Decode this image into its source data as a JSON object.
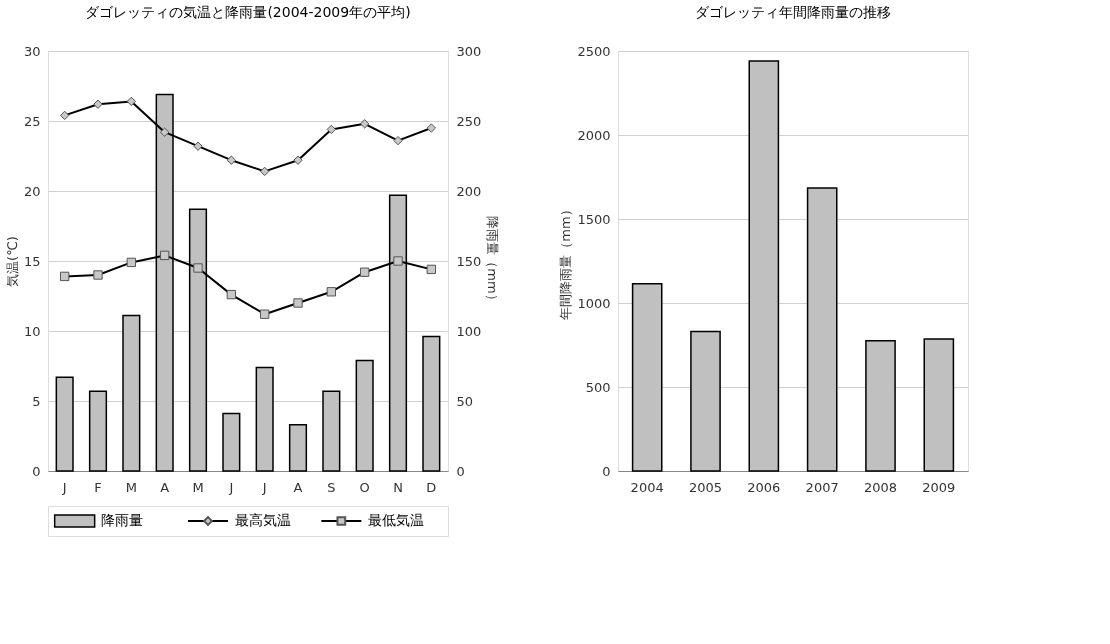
{
  "chart_data": [
    {
      "type": "bar",
      "title": "ダゴレッティの気温と降雨量(2004-2009年の平均)",
      "categories": [
        "J",
        "F",
        "M",
        "A",
        "M",
        "J",
        "J",
        "A",
        "S",
        "O",
        "N",
        "D"
      ],
      "series": [
        {
          "name": "降雨量",
          "type": "bar",
          "axis": "y2",
          "color": "#c0c0c0",
          "values": [
            67,
            57,
            111,
            269,
            187,
            41,
            74,
            33,
            57,
            79,
            197,
            96
          ]
        },
        {
          "name": "最高気温",
          "type": "line",
          "color": "#000000",
          "marker": "diamond",
          "values": [
            25.4,
            26.2,
            26.4,
            24.2,
            23.2,
            22.2,
            21.4,
            22.2,
            24.4,
            24.8,
            23.6,
            24.5
          ]
        },
        {
          "name": "最低気温",
          "type": "line",
          "color": "#000000",
          "marker": "square",
          "values": [
            13.9,
            14.0,
            14.9,
            15.4,
            14.5,
            12.6,
            11.2,
            12.0,
            12.8,
            14.2,
            15.0,
            14.4
          ]
        }
      ],
      "ylabel": "気温(℃)",
      "y2label": "降雨量（mm）",
      "ylim": [
        0,
        30
      ],
      "yticks": [
        0,
        5,
        10,
        15,
        20,
        25,
        30
      ],
      "y2lim": [
        0,
        300
      ],
      "y2ticks": [
        0,
        50,
        100,
        150,
        200,
        250,
        300
      ],
      "grid": "y",
      "legend": "bottom"
    },
    {
      "type": "bar",
      "title": "ダゴレッティ年間降雨量の推移",
      "categories": [
        "2004",
        "2005",
        "2006",
        "2007",
        "2008",
        "2009"
      ],
      "values": [
        1115,
        830,
        2440,
        1685,
        775,
        785
      ],
      "color": "#c0c0c0",
      "ylabel": "年間降雨量（mm）",
      "ylim": [
        0,
        2500
      ],
      "yticks": [
        0,
        500,
        1000,
        1500,
        2000,
        2500
      ],
      "grid": "y"
    }
  ]
}
